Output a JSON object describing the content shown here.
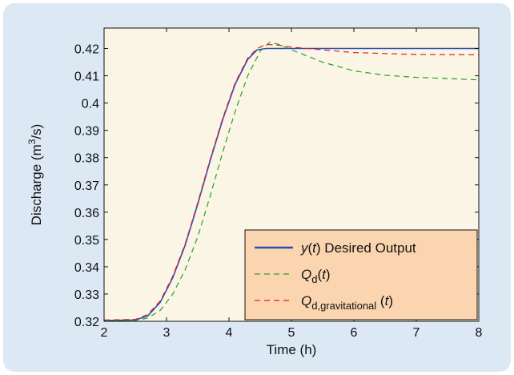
{
  "colors": {
    "panel_background": "#dce8f4",
    "plot_background": "#faf5e4",
    "legend_background": "#fbd5b0"
  },
  "chart_data": {
    "type": "line",
    "xlabel": "Time (h)",
    "ylabel_parts": {
      "base": "Discharge (m",
      "sup": "3",
      "tail": "/s)"
    },
    "xlim": [
      2,
      8
    ],
    "ylim": [
      0.32,
      0.4275
    ],
    "grid": false,
    "legend_position": "bottom-right",
    "x_ticks": [
      "2",
      "3",
      "4",
      "5",
      "6",
      "7",
      "8"
    ],
    "y_ticks": [
      "0.32",
      "0.33",
      "0.34",
      "0.35",
      "0.36",
      "0.37",
      "0.38",
      "0.39",
      "0.4",
      "0.41",
      "0.42"
    ],
    "series": [
      {
        "legend": {
          "parts": [
            {
              "t": "y",
              "i": true
            },
            {
              "t": "("
            },
            {
              "t": "t",
              "i": true
            },
            {
              "t": ") Desired Output"
            }
          ]
        },
        "color": "#2b4fb5",
        "dash": "solid",
        "x": [
          2.0,
          2.5,
          2.7,
          2.9,
          3.1,
          3.3,
          3.5,
          3.7,
          3.9,
          4.1,
          4.3,
          4.45,
          4.6,
          5.0,
          6.0,
          7.0,
          8.0
        ],
        "y": [
          0.3203,
          0.3205,
          0.322,
          0.327,
          0.336,
          0.348,
          0.363,
          0.379,
          0.394,
          0.407,
          0.416,
          0.4195,
          0.42,
          0.42,
          0.42,
          0.42,
          0.42
        ]
      },
      {
        "legend": {
          "parts": [
            {
              "t": "Q",
              "i": true
            },
            {
              "t": "d",
              "sub": true
            },
            {
              "t": "("
            },
            {
              "t": "t",
              "i": true
            },
            {
              "t": ")"
            }
          ]
        },
        "color": "#2aa02a",
        "dash": "dashed",
        "x": [
          2.0,
          2.5,
          2.7,
          2.9,
          3.1,
          3.3,
          3.5,
          3.7,
          3.9,
          4.1,
          4.3,
          4.5,
          4.65,
          4.8,
          5.0,
          5.5,
          6.0,
          6.5,
          7.0,
          7.5,
          8.0
        ],
        "y": [
          0.3203,
          0.3203,
          0.3212,
          0.324,
          0.33,
          0.339,
          0.351,
          0.366,
          0.382,
          0.397,
          0.41,
          0.419,
          0.4223,
          0.4215,
          0.4195,
          0.415,
          0.4118,
          0.4102,
          0.4094,
          0.409,
          0.4085
        ]
      },
      {
        "legend": {
          "parts": [
            {
              "t": "Q",
              "i": true
            },
            {
              "t": "d,gravitational",
              "sub": true
            },
            {
              "t": " ("
            },
            {
              "t": "t",
              "i": true
            },
            {
              "t": ")"
            }
          ]
        },
        "color": "#e02020",
        "dash": "dashed",
        "x": [
          2.0,
          2.5,
          2.7,
          2.9,
          3.1,
          3.3,
          3.5,
          3.7,
          3.9,
          4.1,
          4.3,
          4.45,
          4.6,
          4.8,
          5.0,
          5.5,
          6.0,
          7.0,
          8.0
        ],
        "y": [
          0.3205,
          0.3207,
          0.3225,
          0.3275,
          0.3365,
          0.3485,
          0.3635,
          0.3795,
          0.3945,
          0.4075,
          0.4165,
          0.42,
          0.4215,
          0.4212,
          0.4205,
          0.4195,
          0.4185,
          0.4178,
          0.4177
        ]
      }
    ]
  }
}
